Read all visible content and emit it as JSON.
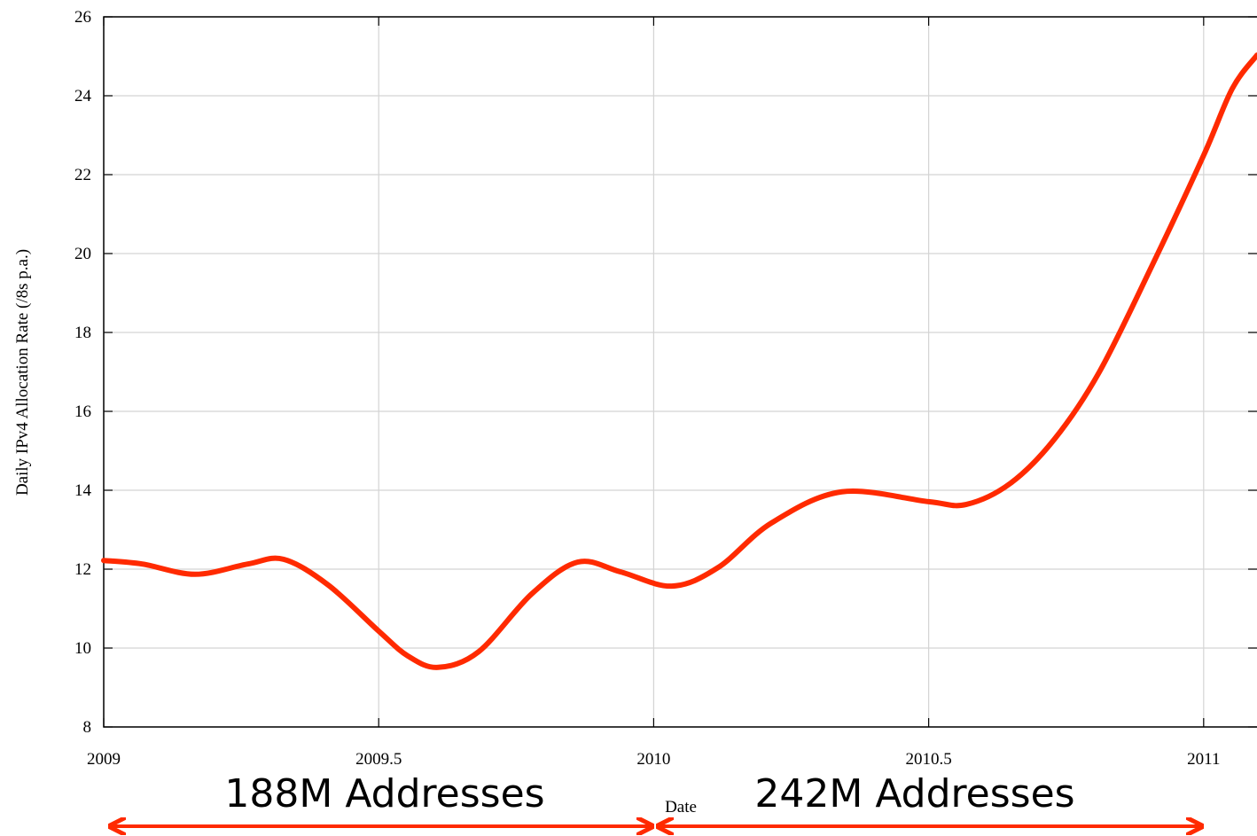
{
  "chart_data": {
    "type": "line",
    "xlabel": "Date",
    "ylabel": "Daily IPv4 Allocation Rate (/8s p.a.)",
    "annotations": [
      "188M Addresses",
      "242M Addresses"
    ],
    "x": [
      2009.0,
      2009.07,
      2009.166,
      2009.262,
      2009.327,
      2009.408,
      2009.5,
      2009.553,
      2009.608,
      2009.682,
      2009.778,
      2009.862,
      2009.94,
      2010.033,
      2010.117,
      2010.214,
      2010.342,
      2010.5,
      2010.568,
      2010.649,
      2010.729,
      2010.81,
      2010.906,
      2011.0,
      2011.052,
      2011.097
    ],
    "series": [
      {
        "color": "#ff2a00",
        "values": [
          12.22,
          12.13,
          11.87,
          12.13,
          12.25,
          11.6,
          10.43,
          9.8,
          9.51,
          9.91,
          11.37,
          12.18,
          11.93,
          11.57,
          12.04,
          13.17,
          13.96,
          13.71,
          13.64,
          14.18,
          15.3,
          16.99,
          19.69,
          22.49,
          24.18,
          25.03
        ]
      }
    ],
    "xlim": [
      2009,
      2011.097
    ],
    "ylim": [
      8,
      26
    ],
    "xticks": [
      2009,
      2009.5,
      2010,
      2010.5,
      2011
    ],
    "yticks": [
      8,
      10,
      12,
      14,
      16,
      18,
      20,
      22,
      24,
      26
    ],
    "grid": true
  }
}
